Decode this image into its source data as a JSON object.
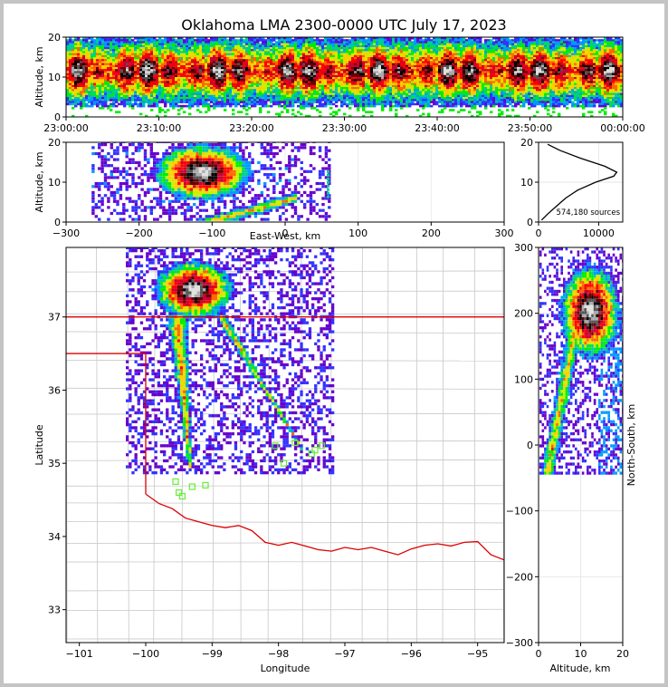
{
  "title": "Oklahoma LMA 2300-0000 UTC July 17, 2023",
  "chart_data": [
    {
      "panel": "altitude-time",
      "type": "heatmap",
      "ylabel": "Altitude, km",
      "xlim": [
        "23:00:00",
        "00:00:00"
      ],
      "ylim": [
        0,
        20
      ],
      "x_ticks": [
        "23:00:00",
        "23:10:00",
        "23:20:00",
        "23:30:00",
        "23:40:00",
        "23:50:00",
        "00:00:00"
      ],
      "y_ticks": [
        "0",
        "10",
        "20"
      ],
      "bands": [
        {
          "from": 3,
          "to": 5,
          "intensity": 0.35
        },
        {
          "from": 5,
          "to": 8,
          "intensity": 0.6
        },
        {
          "from": 8,
          "to": 14,
          "intensity": 0.85
        },
        {
          "from": 14,
          "to": 17,
          "intensity": 0.6
        },
        {
          "from": 17,
          "to": 20,
          "intensity": 0.35
        }
      ]
    },
    {
      "panel": "altitude-east-west",
      "type": "heatmap",
      "xlabel": "East-West, km",
      "ylabel": "Altitude, km",
      "xlim": [
        -300,
        300
      ],
      "ylim": [
        0,
        20
      ],
      "x_ticks": [
        "−300",
        "−200",
        "−100",
        "0",
        "100",
        "200",
        "300"
      ],
      "y_ticks": [
        "0",
        "10",
        "20"
      ],
      "core": {
        "x": -115,
        "y": 12
      }
    },
    {
      "panel": "altitude-histogram",
      "type": "line",
      "xlim": [
        0,
        14000
      ],
      "ylim": [
        0,
        20
      ],
      "x_ticks": [
        "0",
        "10000"
      ],
      "y_ticks": [
        "0",
        "10",
        "20"
      ],
      "annotation": "574,180 sources",
      "points": [
        {
          "count": 500,
          "alt": 0.5
        },
        {
          "count": 1500,
          "alt": 2
        },
        {
          "count": 3000,
          "alt": 4
        },
        {
          "count": 4500,
          "alt": 6
        },
        {
          "count": 6500,
          "alt": 8
        },
        {
          "count": 9500,
          "alt": 10
        },
        {
          "count": 12500,
          "alt": 11.5
        },
        {
          "count": 13000,
          "alt": 12.5
        },
        {
          "count": 11000,
          "alt": 14
        },
        {
          "count": 7000,
          "alt": 16
        },
        {
          "count": 3500,
          "alt": 18
        },
        {
          "count": 1500,
          "alt": 19.5
        }
      ]
    },
    {
      "panel": "plan-view",
      "type": "heatmap",
      "xlabel": "Longitude",
      "ylabel": "Latitude",
      "xlim": [
        -101.2,
        -94.6
      ],
      "ylim": [
        32.55,
        37.95
      ],
      "x_ticks": [
        "−101",
        "−100",
        "−99",
        "−98",
        "−97",
        "−96",
        "−95"
      ],
      "y_ticks": [
        "33",
        "34",
        "35",
        "36",
        "37"
      ],
      "storm_core": {
        "lon": -99.3,
        "lat": 37.35
      },
      "stations": [
        {
          "lon": -99.55,
          "lat": 34.75
        },
        {
          "lon": -99.5,
          "lat": 34.6
        },
        {
          "lon": -99.45,
          "lat": 34.55
        },
        {
          "lon": -99.3,
          "lat": 34.68
        },
        {
          "lon": -99.1,
          "lat": 34.7
        },
        {
          "lon": -98.05,
          "lat": 35.24
        },
        {
          "lon": -97.92,
          "lat": 35.0
        },
        {
          "lon": -97.75,
          "lat": 35.28
        },
        {
          "lon": -97.5,
          "lat": 35.13
        },
        {
          "lon": -97.45,
          "lat": 35.18
        },
        {
          "lon": -97.35,
          "lat": 35.24
        }
      ]
    },
    {
      "panel": "north-south-altitude",
      "type": "heatmap",
      "xlabel": "Altitude, km",
      "ylabel": "North-South, km",
      "xlim": [
        0,
        20
      ],
      "ylim": [
        -300,
        300
      ],
      "x_ticks": [
        "0",
        "10",
        "20"
      ],
      "y_ticks": [
        "−300",
        "−200",
        "−100",
        "0",
        "100",
        "200",
        "300"
      ],
      "core": {
        "alt": 12,
        "ns": 200
      }
    }
  ]
}
